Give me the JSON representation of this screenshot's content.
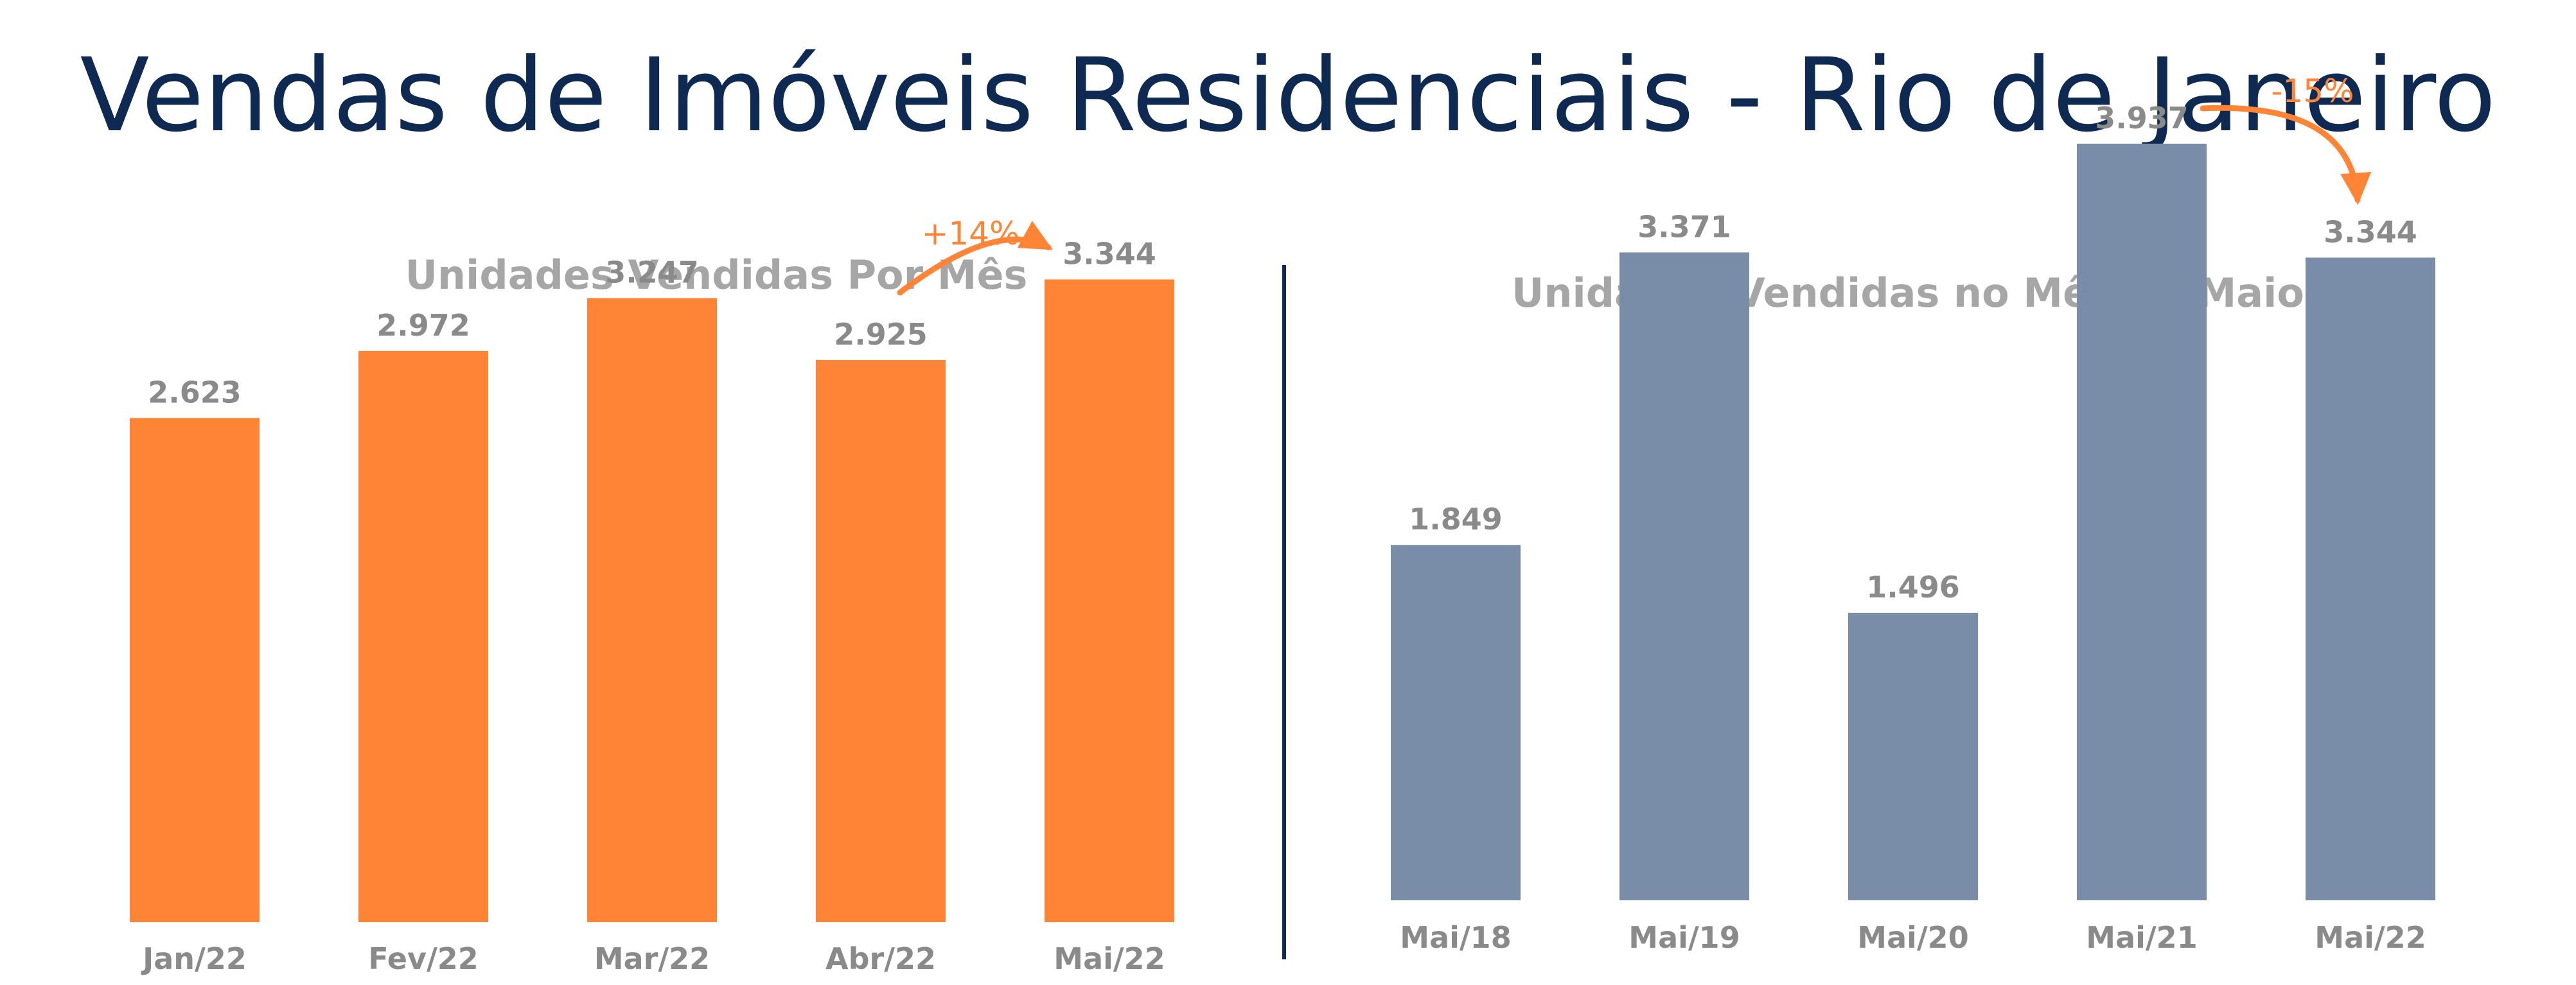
{
  "title": "Vendas de Imóveis Residenciais - Rio de Janeiro",
  "chart_data": [
    {
      "type": "bar",
      "title": "Unidades Vendidas Por Mês",
      "categories": [
        "Jan/22",
        "Fev/22",
        "Mar/22",
        "Abr/22",
        "Mai/22"
      ],
      "values": [
        2623,
        2972,
        3247,
        2925,
        3344
      ],
      "value_labels": [
        "2.623",
        "2.972",
        "3.247",
        "2.925",
        "3.344"
      ],
      "color": "#ff8436",
      "ylim": [
        0,
        4200
      ],
      "grid": false,
      "annotation": {
        "text": "+14%",
        "from": "Abr/22",
        "to": "Mai/22",
        "color": "#ff8436"
      }
    },
    {
      "type": "bar",
      "title": "Unidades Vendidas no Mês de Maio",
      "categories": [
        "Mai/18",
        "Mai/19",
        "Mai/20",
        "Mai/21",
        "Mai/22"
      ],
      "values": [
        1849,
        3371,
        1496,
        3937,
        3344
      ],
      "value_labels": [
        "1.849",
        "3.371",
        "1.496",
        "3.937",
        "3.344"
      ],
      "color": "#7a8da8",
      "ylim": [
        0,
        4200
      ],
      "grid": false,
      "annotation": {
        "text": "-15%",
        "from": "Mai/21",
        "to": "Mai/22",
        "color": "#ff8436"
      }
    }
  ]
}
